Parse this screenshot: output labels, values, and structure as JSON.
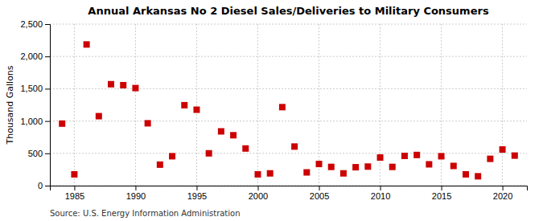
{
  "chart_data": {
    "type": "scatter",
    "title": "Annual Arkansas No 2 Diesel Sales/Deliveries to Military Consumers",
    "ylabel": "Thousand Gallons",
    "source": "Source: U.S. Energy Information Administration",
    "color": "#cc0000",
    "marker": "square",
    "grid": true,
    "xlim": [
      1983,
      2022
    ],
    "ylim": [
      0,
      2500
    ],
    "xticks": [
      1985,
      1990,
      1995,
      2000,
      2005,
      2010,
      2015,
      2020
    ],
    "yticks": [
      0,
      500,
      {
        "value": 1000,
        "label": "1,000"
      },
      {
        "value": 1500,
        "label": "1,500"
      },
      {
        "value": 2000,
        "label": "2,000"
      },
      {
        "value": 2500,
        "label": "2,500"
      }
    ],
    "x": [
      1984,
      1985,
      1986,
      1987,
      1988,
      1989,
      1990,
      1991,
      1992,
      1993,
      1994,
      1995,
      1996,
      1997,
      1998,
      1999,
      2000,
      2001,
      2002,
      2003,
      2004,
      2005,
      2006,
      2007,
      2008,
      2009,
      2010,
      2011,
      2012,
      2013,
      2014,
      2015,
      2016,
      2017,
      2018,
      2019,
      2020,
      2021
    ],
    "values": [
      960,
      175,
      2185,
      1075,
      1570,
      1555,
      1510,
      965,
      325,
      455,
      1245,
      1175,
      500,
      840,
      780,
      575,
      175,
      190,
      1215,
      605,
      205,
      335,
      290,
      190,
      285,
      295,
      435,
      290,
      460,
      475,
      330,
      455,
      305,
      175,
      145,
      415,
      560,
      465
    ]
  }
}
